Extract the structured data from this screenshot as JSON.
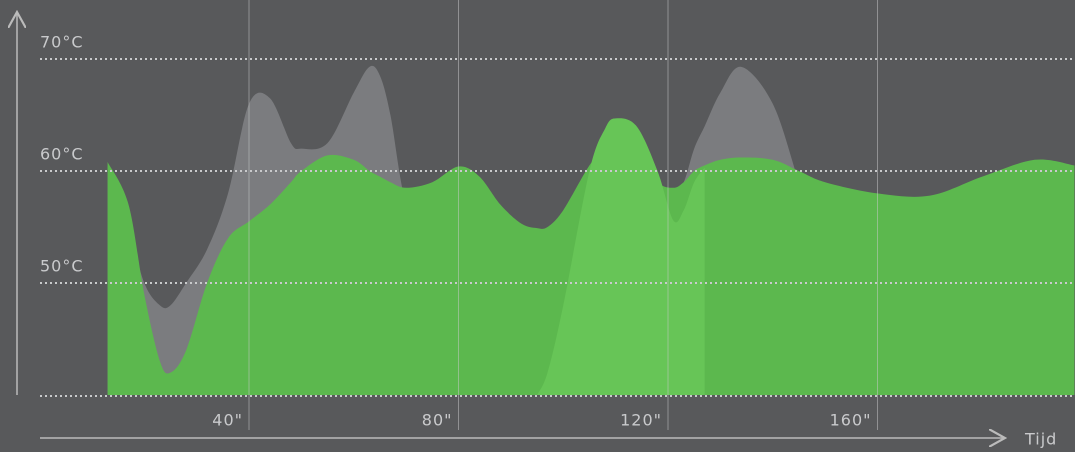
{
  "chart_data": {
    "type": "area",
    "x": [
      13,
      17,
      20,
      23,
      25,
      28,
      32,
      36,
      40,
      44,
      48,
      50,
      55,
      60,
      63,
      65,
      67,
      70,
      75,
      80,
      84,
      88,
      92,
      95,
      97,
      100,
      105,
      108,
      110,
      114,
      118,
      121,
      123,
      125,
      127,
      130,
      134,
      140,
      145,
      150,
      160,
      170,
      180,
      190,
      197.6
    ],
    "series": [
      {
        "color": "#7b7c7f",
        "values": [
          60.5,
          55,
          50,
          48,
          48,
          50,
          53,
          58,
          66,
          66.5,
          62.5,
          62,
          62.5,
          67,
          69.3,
          68.5,
          65,
          57,
          52,
          49,
          48,
          48,
          48,
          48.5,
          49,
          50,
          52,
          53,
          54,
          56,
          57,
          58,
          59,
          62,
          64,
          67,
          69.3,
          66,
          59,
          52,
          47,
          46,
          46,
          46,
          46
        ]
      },
      {
        "color": "#5cb84e",
        "values": [
          60.8,
          57,
          49,
          43,
          42,
          44,
          50,
          54,
          55.5,
          57,
          59,
          60,
          61.4,
          61,
          60,
          59.5,
          59,
          58.5,
          59,
          60.4,
          59.5,
          57,
          55.3,
          54.9,
          55,
          56.5,
          60.5,
          62,
          62.5,
          61.5,
          59,
          58.5,
          59,
          60,
          60.5,
          61,
          61.2,
          61,
          60,
          59,
          58,
          57.8,
          59.5,
          61,
          60.5
        ]
      },
      {
        "color": "#67c557",
        "values": [
          null,
          null,
          null,
          null,
          null,
          null,
          null,
          null,
          null,
          null,
          null,
          null,
          null,
          null,
          null,
          null,
          null,
          null,
          null,
          null,
          null,
          null,
          null,
          40,
          42,
          48,
          60,
          63.8,
          64.7,
          64,
          60,
          55.6,
          56.5,
          59,
          60.3,
          null,
          null,
          null,
          null,
          null,
          null,
          null,
          null,
          null,
          null
        ]
      }
    ],
    "xlim": [
      0,
      198
    ],
    "ylim": [
      40,
      75
    ],
    "xticks": [
      {
        "value": 40,
        "label": "40\""
      },
      {
        "value": 80,
        "label": "80\""
      },
      {
        "value": 120,
        "label": "120\""
      },
      {
        "value": 160,
        "label": "160\""
      }
    ],
    "yticks": [
      {
        "value": 50,
        "label": "50°C"
      },
      {
        "value": 60,
        "label": "60°C"
      },
      {
        "value": 70,
        "label": "70°C"
      }
    ],
    "xlabel": "Tijd",
    "grid": true
  }
}
